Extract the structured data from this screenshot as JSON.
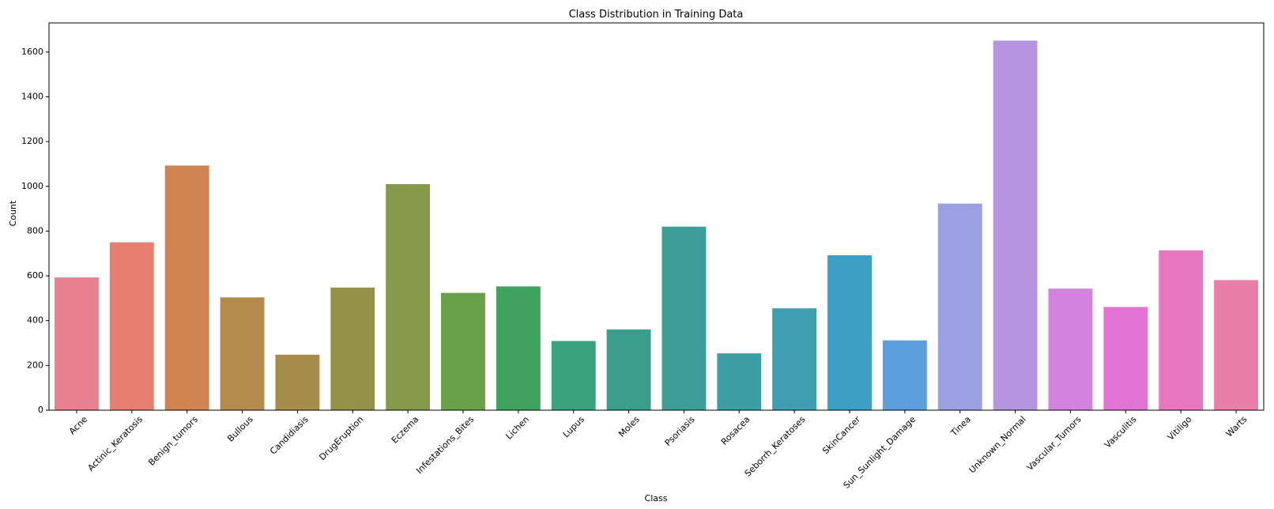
{
  "chart_data": {
    "type": "bar",
    "title": "Class Distribution in Training Data",
    "xlabel": "Class",
    "ylabel": "Count",
    "ylim": [
      0,
      1730
    ],
    "yticks": [
      0,
      200,
      400,
      600,
      800,
      1000,
      1200,
      1400,
      1600
    ],
    "grid": false,
    "categories": [
      "Acne",
      "Actinic_Keratosis",
      "Benign_tumors",
      "Bullous",
      "Candidiasis",
      "DrugEruption",
      "Eczema",
      "Infestations_Bites",
      "Lichen",
      "Lupus",
      "Moles",
      "Psoriasis",
      "Rosacea",
      "Seborrh_Keratoses",
      "SkinCancer",
      "Sun_Sunlight_Damage",
      "Tinea",
      "Unknown_Normal",
      "Vascular_Tumors",
      "Vasculitis",
      "Vitiligo",
      "Warts"
    ],
    "values": [
      593,
      750,
      1093,
      504,
      248,
      548,
      1010,
      524,
      553,
      309,
      361,
      820,
      254,
      455,
      692,
      312,
      923,
      1651,
      543,
      461,
      714,
      581
    ],
    "colors": [
      "#e8808e",
      "#e6806e",
      "#d0844f",
      "#b48b4b",
      "#a68d4a",
      "#949248",
      "#87994a",
      "#69a04a",
      "#3fa35f",
      "#3ba27e",
      "#3b9e8c",
      "#3d9e98",
      "#3d9ea3",
      "#3f9eb0",
      "#3c9fc3",
      "#5b9fdc",
      "#9aa0e2",
      "#b695e0",
      "#d283dc",
      "#e073d3",
      "#e778c0",
      "#e77fa6"
    ]
  }
}
